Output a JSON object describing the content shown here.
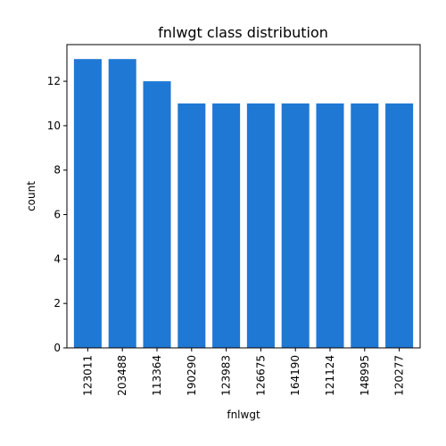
{
  "chart_data": {
    "type": "bar",
    "title": "fnlwgt class distribution",
    "xlabel": "fnlwgt",
    "ylabel": "count",
    "categories": [
      "123011",
      "203488",
      "113364",
      "190290",
      "123983",
      "126675",
      "164190",
      "121124",
      "148995",
      "120277"
    ],
    "values": [
      13,
      13,
      12,
      11,
      11,
      11,
      11,
      11,
      11,
      11
    ],
    "ylim": [
      0,
      13.65
    ],
    "yticks": [
      0,
      2,
      4,
      6,
      8,
      10,
      12
    ],
    "bar_color": "#1f78d4",
    "grid": false,
    "legend": false
  }
}
